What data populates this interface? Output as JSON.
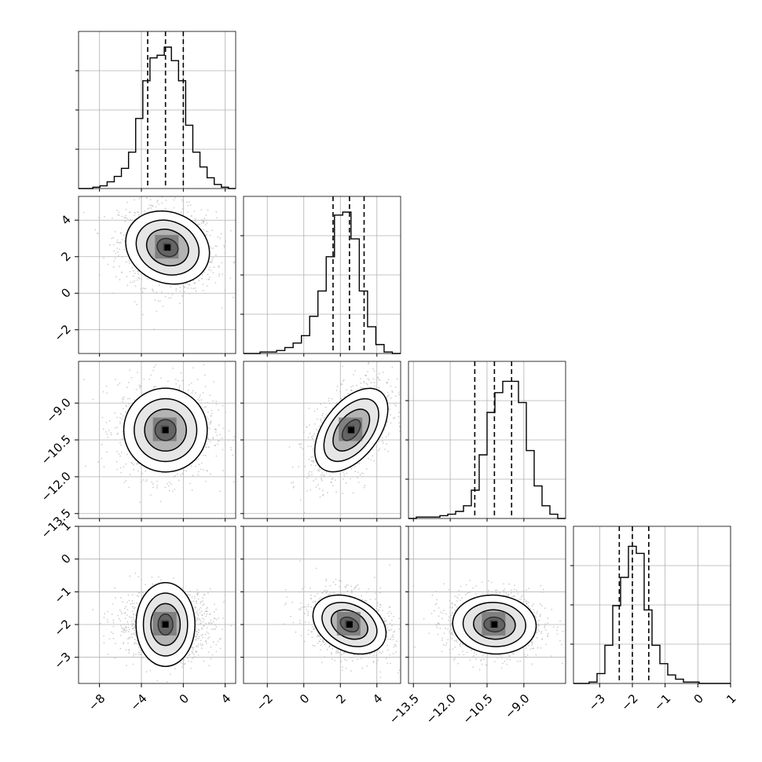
{
  "chart_data": {
    "type": "corner",
    "grid": true,
    "quantiles": [
      0.16,
      0.5,
      0.84
    ],
    "parameters": [
      {
        "index": 0,
        "range": [
          -10,
          5
        ],
        "ticks": [
          -8,
          -4,
          0,
          4
        ],
        "tick_labels": [
          "−8",
          "−4",
          "0",
          "4"
        ],
        "quantile_values": [
          -3.4,
          -1.7,
          0.0
        ],
        "hist_max": 105,
        "hist_counts": [
          0,
          0,
          1,
          2,
          5,
          9,
          15,
          27,
          52,
          80,
          97,
          99,
          105,
          95,
          80,
          47,
          27,
          16,
          8,
          3,
          1,
          0
        ]
      },
      {
        "index": 1,
        "range": [
          -3.3,
          5.3
        ],
        "ticks": [
          -2,
          0,
          2,
          4
        ],
        "tick_labels": [
          "−2",
          "0",
          "2",
          "4"
        ],
        "quantile_values": [
          1.6,
          2.5,
          3.3
        ],
        "hist_max": 95,
        "hist_counts": [
          0,
          0,
          1,
          1,
          2,
          4,
          7,
          12,
          25,
          42,
          65,
          93,
          95,
          77,
          42,
          18,
          6,
          1,
          0
        ]
      },
      {
        "index": 2,
        "range": [
          -13.7,
          -7.3
        ],
        "ticks": [
          -13.5,
          -12.0,
          -10.5,
          -9.0
        ],
        "tick_labels": [
          "−13.5",
          "−12.0",
          "−10.5",
          "−9.0"
        ],
        "quantile_values": [
          -11.0,
          -10.2,
          -9.5
        ],
        "hist_max": 100,
        "hist_counts": [
          0,
          1,
          1,
          1,
          2,
          3,
          5,
          9,
          20,
          45,
          75,
          89,
          97,
          97,
          82,
          48,
          23,
          9,
          3,
          0
        ]
      },
      {
        "index": 3,
        "range": [
          -3.8,
          1.0
        ],
        "ticks": [
          -3,
          -2,
          -1,
          0,
          1
        ],
        "tick_labels": [
          "−3",
          "−2",
          "−1",
          "0",
          "1"
        ],
        "quantile_values": [
          -2.4,
          -2.0,
          -1.5
        ],
        "hist_max": 100,
        "hist_counts": [
          0,
          0,
          1,
          7,
          27,
          55,
          75,
          97,
          92,
          52,
          27,
          14,
          6,
          3,
          1,
          1,
          0,
          0,
          0,
          0
        ]
      }
    ],
    "pairs": [
      {
        "x": 0,
        "y": 1,
        "center": [
          -1.5,
          2.5
        ],
        "sigma": [
          2.0,
          1.0
        ],
        "rho": -0.15
      },
      {
        "x": 0,
        "y": 2,
        "center": [
          -1.7,
          -10.1
        ],
        "sigma": [
          2.0,
          0.85
        ],
        "rho": 0.0
      },
      {
        "x": 1,
        "y": 2,
        "center": [
          2.6,
          -10.1
        ],
        "sigma": [
          1.0,
          0.85
        ],
        "rho": 0.5
      },
      {
        "x": 0,
        "y": 3,
        "center": [
          -1.7,
          -2.0
        ],
        "sigma": [
          2.0,
          0.45
        ],
        "rho": 0.0
      },
      {
        "x": 1,
        "y": 3,
        "center": [
          2.5,
          -2.0
        ],
        "sigma": [
          1.0,
          0.45
        ],
        "rho": -0.3
      },
      {
        "x": 2,
        "y": 3,
        "center": [
          -10.2,
          -2.0
        ],
        "sigma": [
          0.85,
          0.45
        ],
        "rho": -0.05
      }
    ],
    "colors": {
      "line": "#000000",
      "grid": "#b0b0b0",
      "points": "#bbbbbb",
      "fill_dark": "#555555"
    }
  }
}
